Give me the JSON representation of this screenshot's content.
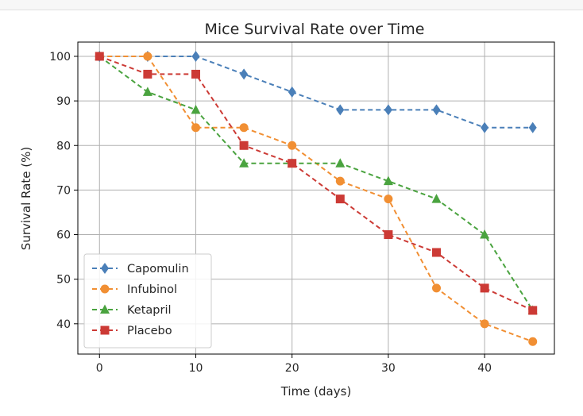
{
  "chart_data": {
    "type": "line",
    "title": "Mice Survival Rate over Time",
    "xlabel": "Time (days)",
    "ylabel": "Survival Rate (%)",
    "xlim": [
      -2.25,
      47.25
    ],
    "ylim": [
      33.2,
      103.2
    ],
    "xticks": [
      0,
      10,
      20,
      30,
      40
    ],
    "yticks": [
      40,
      50,
      60,
      70,
      80,
      90,
      100
    ],
    "grid": true,
    "legend_position": "lower-left",
    "x": [
      0,
      5,
      10,
      15,
      20,
      25,
      30,
      35,
      40,
      45
    ],
    "series": [
      {
        "name": "Capomulin",
        "color": "#4a7fb8",
        "marker": "diamond",
        "values": [
          100,
          100,
          100,
          96,
          92,
          88,
          88,
          88,
          84,
          84
        ]
      },
      {
        "name": "Infubinol",
        "color": "#f18f33",
        "marker": "circle",
        "values": [
          100,
          100,
          84,
          84,
          80,
          72,
          68,
          48,
          40,
          36
        ]
      },
      {
        "name": "Ketapril",
        "color": "#4aa33f",
        "marker": "triangle",
        "values": [
          100,
          92,
          88,
          76,
          76,
          76,
          72,
          68,
          60,
          43
        ]
      },
      {
        "name": "Placebo",
        "color": "#cc3a35",
        "marker": "square",
        "values": [
          100,
          96,
          96,
          80,
          76,
          68,
          60,
          56,
          48,
          43
        ]
      }
    ]
  }
}
